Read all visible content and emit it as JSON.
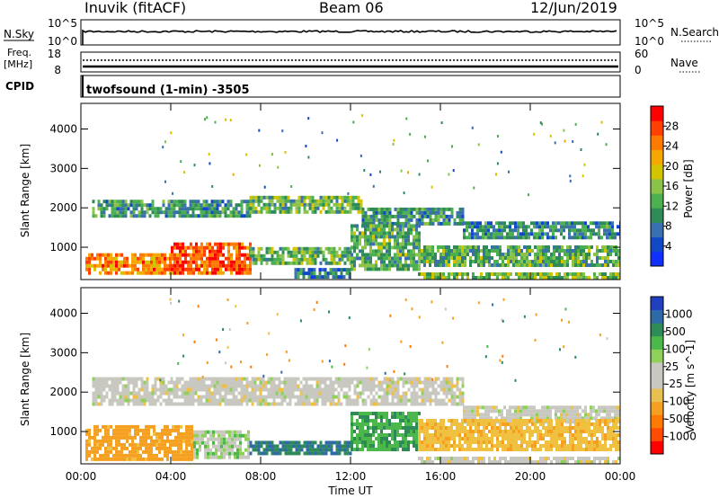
{
  "header": {
    "site": "Inuvik (fitACF)",
    "beam": "Beam 06",
    "date": "12/Jun/2019"
  },
  "top_panels": {
    "nsky_label": "N.Sky",
    "nsearch_label": "N.Search",
    "freq_label_1": "Freq.",
    "freq_label_2": "[MHz]",
    "nave_label": "Nave",
    "cpid_label": "CPID",
    "cpid_text": "twofsound (1-min) -3505",
    "noise_left_ticks": [
      "10^5",
      "10^0"
    ],
    "noise_right_ticks": [
      "10^5",
      "10^0"
    ],
    "freq_left_ticks": [
      "18",
      "8"
    ],
    "freq_right_ticks": [
      "60",
      "0"
    ]
  },
  "colorbars": {
    "power": {
      "label": "Power [dB]",
      "ticks": [
        "28",
        "24",
        "20",
        "16",
        "12",
        "8",
        "4"
      ],
      "colors": [
        "#1030ff",
        "#1048c8",
        "#3a6fb0",
        "#2e8b57",
        "#4caf50",
        "#8bc34a",
        "#d4c400",
        "#f5a800",
        "#ff7a00",
        "#ff4000",
        "#ff0000"
      ]
    },
    "velocity": {
      "label": "Velocity [m s^-1]",
      "ticks": [
        "1000",
        "500",
        "100",
        "25",
        "-25",
        "-100",
        "-500",
        "-1000"
      ],
      "colors": [
        "#2040c0",
        "#2f6aa8",
        "#2e8b57",
        "#4cb84c",
        "#8fd05a",
        "#c8c8c0",
        "#c8c8c0",
        "#e8c050",
        "#f5a020",
        "#ff7a00",
        "#ff4a00",
        "#ff0000"
      ]
    }
  },
  "chart_data": [
    {
      "type": "heatmap",
      "title": "Power",
      "ylabel": "Slant Range [km]",
      "xlabel": "",
      "ylim": [
        180,
        4650
      ],
      "xlim": [
        0,
        24
      ],
      "yticks": [
        1000,
        2000,
        3000,
        4000
      ],
      "xticks": [
        "00:00",
        "04:00",
        "08:00",
        "12:00",
        "16:00",
        "20:00",
        "00:00"
      ],
      "bands": [
        {
          "x": [
            0.5,
            7.5
          ],
          "range": [
            1750,
            2150
          ],
          "level": 10
        },
        {
          "x": [
            7.5,
            12.5
          ],
          "range": [
            1850,
            2300
          ],
          "level": 13
        },
        {
          "x": [
            12.5,
            17
          ],
          "range": [
            1550,
            1950
          ],
          "level": 10
        },
        {
          "x": [
            17,
            24
          ],
          "range": [
            1200,
            1650
          ],
          "level": 9
        },
        {
          "x": [
            0.2,
            4
          ],
          "range": [
            300,
            800
          ],
          "level": 22
        },
        {
          "x": [
            4,
            7.5
          ],
          "range": [
            300,
            1100
          ],
          "level": 25
        },
        {
          "x": [
            7.5,
            12
          ],
          "range": [
            550,
            1000
          ],
          "level": 13
        },
        {
          "x": [
            12,
            15
          ],
          "range": [
            400,
            1500
          ],
          "level": 12
        },
        {
          "x": [
            15,
            24
          ],
          "range": [
            500,
            1000
          ],
          "level": 12
        },
        {
          "x": [
            9.5,
            12
          ],
          "range": [
            200,
            400
          ],
          "level": 8
        },
        {
          "x": [
            15,
            24
          ],
          "range": [
            180,
            350
          ],
          "level": 14
        }
      ]
    },
    {
      "type": "heatmap",
      "title": "Velocity",
      "ylabel": "Slant Range [km]",
      "xlabel": "Time UT",
      "ylim": [
        180,
        4650
      ],
      "xlim": [
        0,
        24
      ],
      "yticks": [
        1000,
        2000,
        3000,
        4000
      ],
      "xticks": [
        "00:00",
        "04:00",
        "08:00",
        "12:00",
        "16:00",
        "20:00",
        "00:00"
      ],
      "bands": [
        {
          "x": [
            0.5,
            17
          ],
          "range": [
            1650,
            2300
          ],
          "level": 0
        },
        {
          "x": [
            17,
            24
          ],
          "range": [
            1200,
            1650
          ],
          "level": 0
        },
        {
          "x": [
            0.2,
            5
          ],
          "range": [
            250,
            1100
          ],
          "level": -150
        },
        {
          "x": [
            5,
            7.5
          ],
          "range": [
            300,
            1000
          ],
          "level": 20
        },
        {
          "x": [
            7.5,
            12
          ],
          "range": [
            400,
            700
          ],
          "level": 300
        },
        {
          "x": [
            12,
            15
          ],
          "range": [
            500,
            1500
          ],
          "level": 90
        },
        {
          "x": [
            15,
            24
          ],
          "range": [
            500,
            1300
          ],
          "level": -80
        },
        {
          "x": [
            15,
            24
          ],
          "range": [
            180,
            350
          ],
          "level": 0
        }
      ]
    }
  ]
}
